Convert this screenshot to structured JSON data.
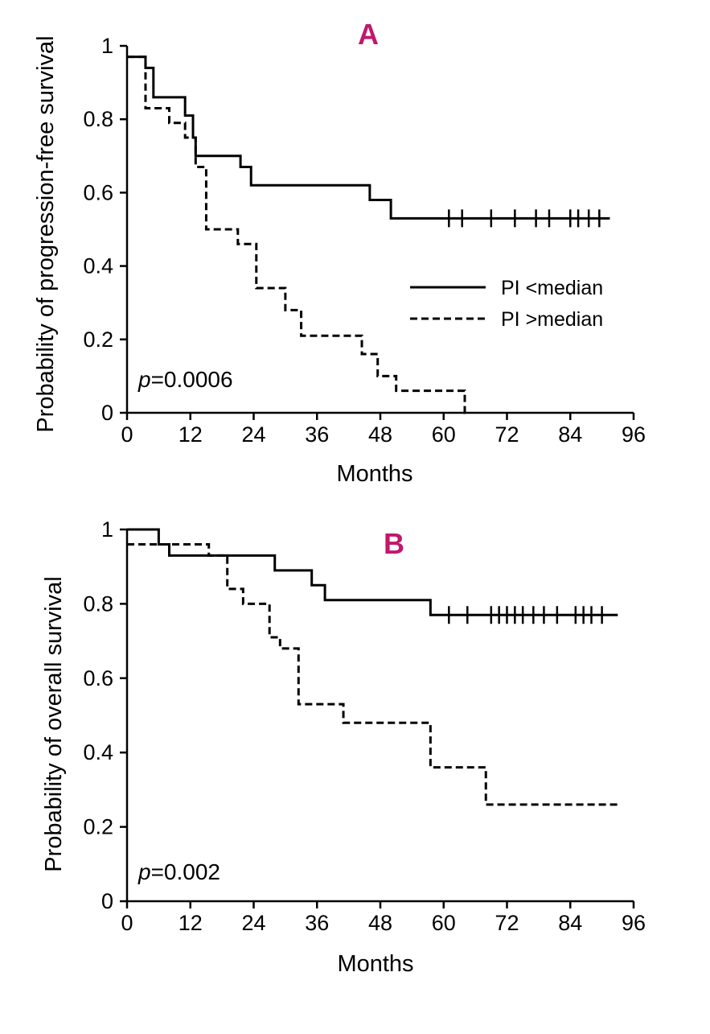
{
  "colors": {
    "ink": "#000000",
    "panel_label": "#c0186c",
    "background": "#ffffff"
  },
  "chart_data": [
    {
      "type": "line",
      "subtype": "kaplan-meier",
      "panel_label": "A",
      "xlabel": "Months",
      "ylabel": "Probability of progression-free survival",
      "xlim": [
        0,
        96
      ],
      "ylim": [
        0,
        1
      ],
      "x_ticks": [
        0,
        12,
        24,
        36,
        48,
        60,
        72,
        84,
        96
      ],
      "x_tick_labels": [
        "0",
        "12",
        "24",
        "36",
        "48",
        "60",
        "72",
        "84",
        "96"
      ],
      "y_ticks": [
        0,
        0.2,
        0.4,
        0.6,
        0.8,
        1
      ],
      "y_tick_labels": [
        "0",
        "0.2",
        "0.4",
        "0.6",
        "0.8",
        "1"
      ],
      "grid": false,
      "annotation": {
        "prefix": "p",
        "text": "=0.0006"
      },
      "legend": {
        "position": "center-right",
        "entries": [
          "PI <median",
          "PI >median"
        ]
      },
      "series": [
        {
          "name": "PI <median",
          "style": "solid",
          "steps": [
            [
              0,
              0.97
            ],
            [
              3.5,
              0.94
            ],
            [
              5,
              0.86
            ],
            [
              11,
              0.81
            ],
            [
              12.5,
              0.75
            ],
            [
              13,
              0.7
            ],
            [
              21.5,
              0.67
            ],
            [
              23.5,
              0.62
            ],
            [
              46,
              0.58
            ],
            [
              50,
              0.53
            ],
            [
              91.5,
              0.53
            ]
          ],
          "censored": [
            61,
            63.5,
            69,
            73.5,
            77.5,
            80,
            84,
            85.5,
            87.5,
            89.5
          ]
        },
        {
          "name": "PI >median",
          "style": "dashed",
          "steps": [
            [
              0,
              0.97
            ],
            [
              3.5,
              0.83
            ],
            [
              8,
              0.79
            ],
            [
              11,
              0.75
            ],
            [
              13,
              0.67
            ],
            [
              15,
              0.5
            ],
            [
              21,
              0.46
            ],
            [
              24.5,
              0.34
            ],
            [
              30,
              0.28
            ],
            [
              33,
              0.21
            ],
            [
              44.5,
              0.16
            ],
            [
              47.5,
              0.1
            ],
            [
              51,
              0.06
            ],
            [
              64,
              0
            ],
            [
              64.5,
              0
            ]
          ],
          "censored": []
        }
      ]
    },
    {
      "type": "line",
      "subtype": "kaplan-meier",
      "panel_label": "B",
      "xlabel": "Months",
      "ylabel": "Probability of overall survival",
      "xlim": [
        0,
        96
      ],
      "ylim": [
        0,
        1
      ],
      "x_ticks": [
        0,
        12,
        24,
        36,
        48,
        60,
        72,
        84,
        96
      ],
      "x_tick_labels": [
        "0",
        "12",
        "24",
        "36",
        "48",
        "60",
        "72",
        "84",
        "96"
      ],
      "y_ticks": [
        0,
        0.2,
        0.4,
        0.6,
        0.8,
        1
      ],
      "y_tick_labels": [
        "0",
        "0.2",
        "0.4",
        "0.6",
        "0.8",
        "1"
      ],
      "grid": false,
      "annotation": {
        "prefix": "p",
        "text": "=0.002"
      },
      "series": [
        {
          "name": "PI <median",
          "style": "solid",
          "steps": [
            [
              0,
              1.0
            ],
            [
              6,
              0.96
            ],
            [
              8,
              0.93
            ],
            [
              28,
              0.89
            ],
            [
              35,
              0.85
            ],
            [
              37.5,
              0.81
            ],
            [
              57.5,
              0.77
            ],
            [
              93,
              0.77
            ]
          ],
          "censored": [
            61,
            64.5,
            69,
            70.5,
            72,
            73.5,
            75,
            77,
            79,
            81.5,
            85,
            86.5,
            88,
            90
          ]
        },
        {
          "name": "PI >median",
          "style": "dashed",
          "steps": [
            [
              0,
              0.96
            ],
            [
              15.5,
              0.93
            ],
            [
              19,
              0.84
            ],
            [
              22,
              0.8
            ],
            [
              27,
              0.71
            ],
            [
              29,
              0.68
            ],
            [
              32.5,
              0.53
            ],
            [
              41,
              0.48
            ],
            [
              57.5,
              0.36
            ],
            [
              68,
              0.26
            ],
            [
              93.5,
              0.26
            ]
          ],
          "censored": []
        }
      ]
    }
  ]
}
